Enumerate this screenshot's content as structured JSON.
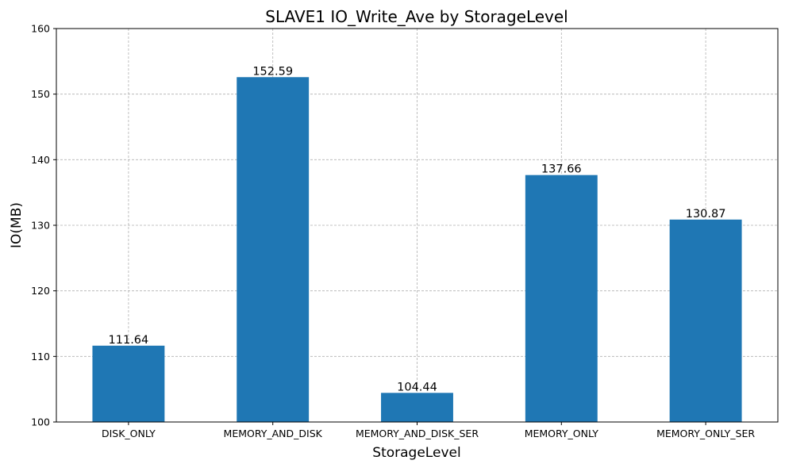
{
  "chart_data": {
    "type": "bar",
    "title": "SLAVE1 IO_Write_Ave by StorageLevel",
    "xlabel": "StorageLevel",
    "ylabel": "IO(MB)",
    "categories": [
      "DISK_ONLY",
      "MEMORY_AND_DISK",
      "MEMORY_AND_DISK_SER",
      "MEMORY_ONLY",
      "MEMORY_ONLY_SER"
    ],
    "values": [
      111.64,
      152.59,
      104.44,
      137.66,
      130.87
    ],
    "data_labels": [
      "111.64",
      "152.59",
      "104.44",
      "137.66",
      "130.87"
    ],
    "ylim": [
      100,
      160
    ],
    "yticks": [
      100,
      110,
      120,
      130,
      140,
      150,
      160
    ],
    "grid": true,
    "bar_color": "#1f77b4"
  }
}
